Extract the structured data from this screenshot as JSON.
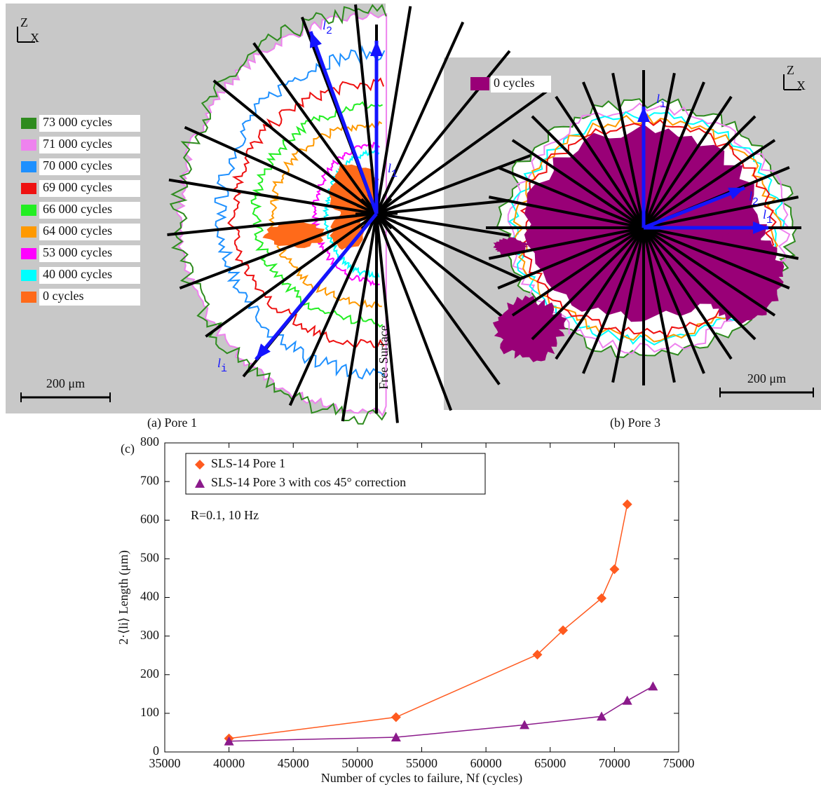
{
  "panel_a": {
    "caption": "(a) Pore 1",
    "axis_z": "Z",
    "axis_x": "X",
    "legend": [
      {
        "label": "73 000 cycles",
        "color": "#2e8b1e"
      },
      {
        "label": "71 000 cycles",
        "color": "#ee82ee"
      },
      {
        "label": "70 000 cycles",
        "color": "#1e90ff"
      },
      {
        "label": "69 000 cycles",
        "color": "#ee1111"
      },
      {
        "label": "66 000 cycles",
        "color": "#22ee22"
      },
      {
        "label": "64 000 cycles",
        "color": "#ff9900"
      },
      {
        "label": "53 000 cycles",
        "color": "#ff00ff"
      },
      {
        "label": "40 000 cycles",
        "color": "#00ffff"
      },
      {
        "label": "0 cycles",
        "color": "#ff6a1a"
      }
    ],
    "arrow_l2": {
      "symbol": "l",
      "sub": "2"
    },
    "arrow_l1": {
      "symbol": "l",
      "sub": "1"
    },
    "arrow_li": {
      "symbol": "l",
      "sub": "i"
    },
    "surface_label": "Free Surface",
    "scale_bar": "200 μm"
  },
  "panel_b": {
    "caption": "(b) Pore 3",
    "axis_z": "Z",
    "axis_x": "X",
    "legend": [
      {
        "label": "0 cycles",
        "color": "#990077"
      }
    ],
    "arrow_li": {
      "symbol": "l",
      "sub": "i"
    },
    "arrow_l2": {
      "symbol": "l",
      "sub": "2"
    },
    "arrow_l1": {
      "symbol": "l",
      "sub": "1"
    },
    "scale_bar": "200 μm"
  },
  "chart_data": {
    "type": "line",
    "panel_label": "(c)",
    "xlabel": "Number of cycles to failure, Nf (cycles)",
    "ylabel": "2·⟨li⟩ Length (μm)",
    "annotation": "R=0.1, 10 Hz",
    "xlim": [
      35000,
      75000
    ],
    "xticks": [
      35000,
      40000,
      45000,
      50000,
      55000,
      60000,
      65000,
      70000,
      75000
    ],
    "ylim": [
      0,
      800
    ],
    "yticks": [
      0,
      100,
      200,
      300,
      400,
      500,
      600,
      700,
      800
    ],
    "legend": "upper left",
    "series": [
      {
        "name": "SLS-14 Pore 1",
        "color": "#ff5a1f",
        "marker": "diamond",
        "x": [
          40000,
          53000,
          64000,
          66000,
          69000,
          70000,
          71000
        ],
        "values": [
          35,
          90,
          252,
          315,
          398,
          473,
          641
        ]
      },
      {
        "name": "SLS-14 Pore 3 with cos 45° correction",
        "color": "#8b1a8b",
        "marker": "triangle",
        "x": [
          40000,
          53000,
          63000,
          69000,
          71000,
          73000
        ],
        "values": [
          28,
          38,
          70,
          92,
          133,
          170
        ]
      }
    ]
  }
}
